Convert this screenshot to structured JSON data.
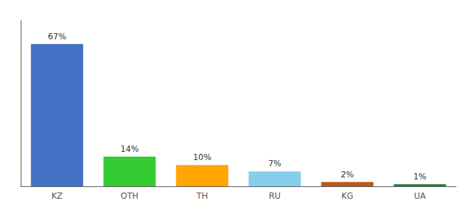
{
  "chart_data": {
    "type": "bar",
    "categories": [
      "KZ",
      "OTH",
      "TH",
      "RU",
      "KG",
      "UA"
    ],
    "values": [
      67,
      14,
      10,
      7,
      2,
      1
    ],
    "value_labels": [
      "67%",
      "14%",
      "10%",
      "7%",
      "2%",
      "1%"
    ],
    "colors": [
      "#4472C4",
      "#33CC33",
      "#FFA500",
      "#87CEEB",
      "#B85C1A",
      "#2E7D32"
    ],
    "ylim": [
      0,
      78
    ],
    "tick_labels": "x",
    "grid": false,
    "data_labels": true
  }
}
